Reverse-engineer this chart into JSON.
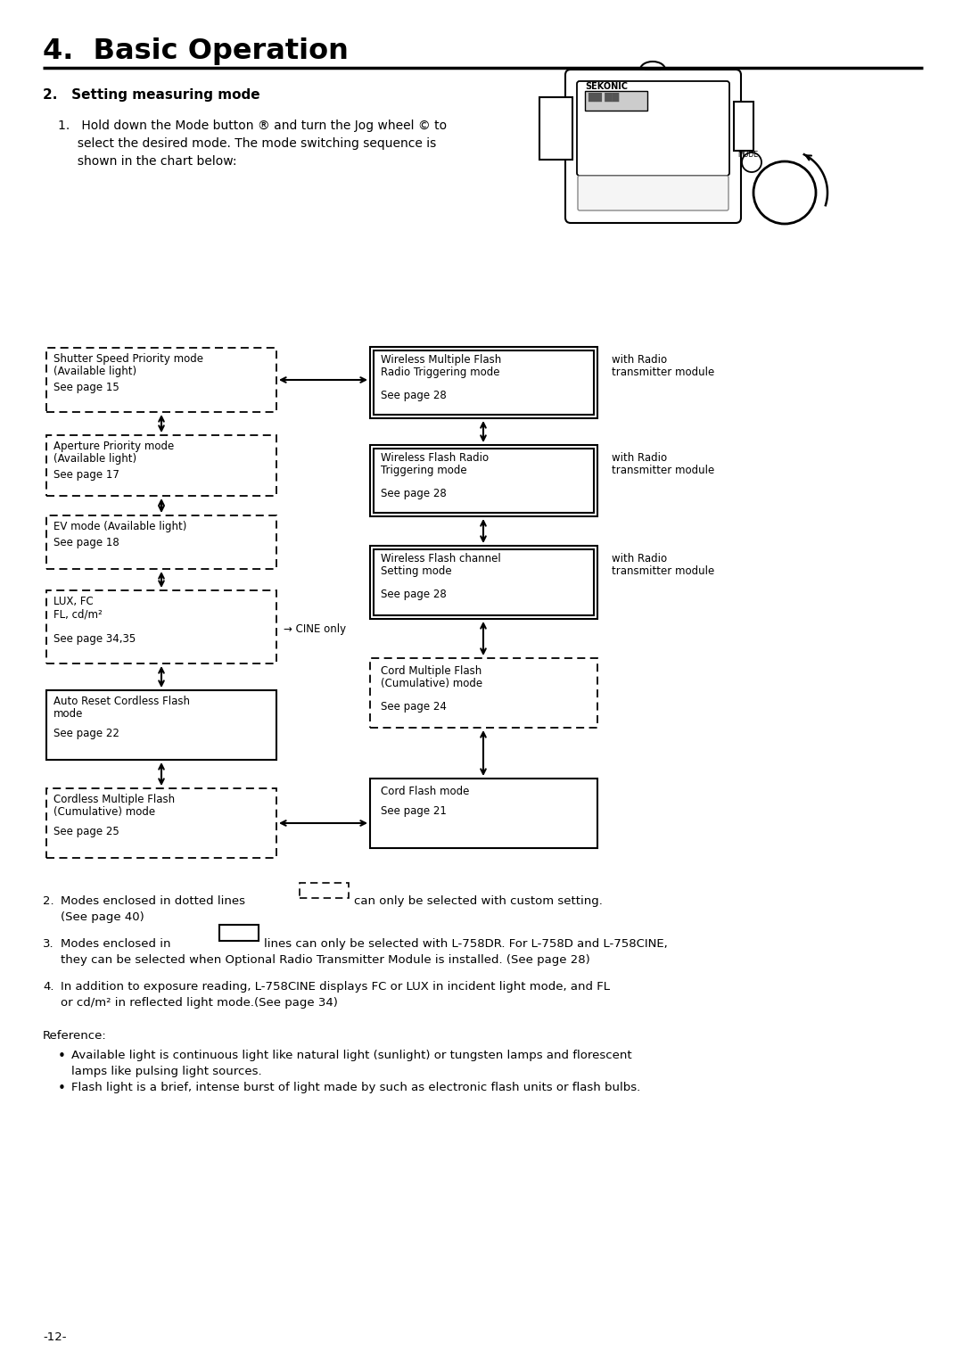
{
  "title": "4.  Basic Operation",
  "section_title": "2.   Setting measuring mode",
  "bg_color": "#ffffff",
  "text_color": "#000000",
  "page_number": "-12-"
}
